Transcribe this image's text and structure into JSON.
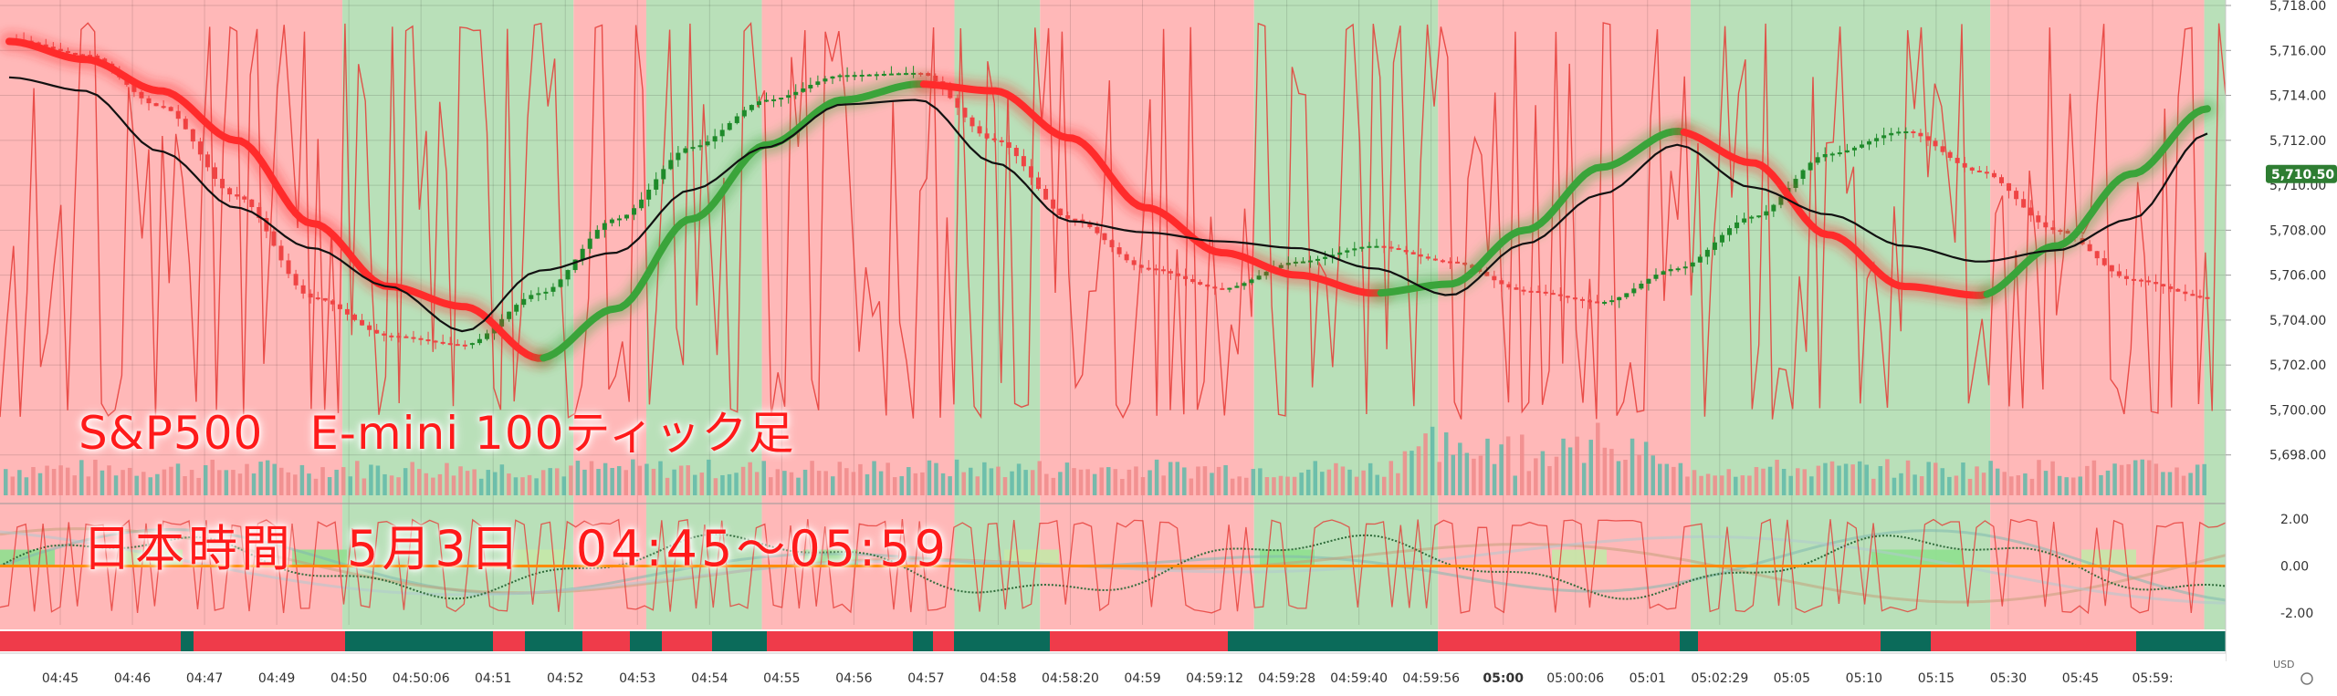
{
  "titles": {
    "line1": "S&P500　E-mini 100ティック足",
    "line2": "日本時間　5月3日　04:45～05:59"
  },
  "colors": {
    "bull_bg": "#b9e0b9",
    "bear_bg": "#ffb8b8",
    "bull": "#1e8a2a",
    "bear": "#ef4444",
    "ribbon_bull": "#3aa43a",
    "ribbon_bear": "#ff2b2b",
    "ma": "#111111",
    "osc": "#e53935",
    "zero_line": "#ff8a00",
    "strip_bull": "#0b6b5a",
    "strip_bear": "#ef3b4a",
    "vol_bull": "#5fb8a8",
    "vol_bear": "#f08a8a",
    "price_tag": "#2e7d32"
  },
  "chart_data": {
    "type": "line",
    "xlabel": "",
    "ylabel": "",
    "ylim": [
      5696,
      5718
    ],
    "y_ticks": [
      "5,718.00",
      "5,716.00",
      "5,714.00",
      "5,712.00",
      "5,710.00",
      "5,708.00",
      "5,706.00",
      "5,704.00",
      "5,702.00",
      "5,700.00",
      "5,698.00"
    ],
    "last_price": "5,710.50",
    "x_ticks": [
      "04:45",
      "04:46",
      "04:47",
      "04:49",
      "04:50",
      "04:50:06",
      "04:51",
      "04:52",
      "04:53",
      "04:54",
      "04:55",
      "04:56",
      "04:57",
      "04:58",
      "04:58:20",
      "04:59",
      "04:59:12",
      "04:59:28",
      "04:59:40",
      "04:59:56",
      "05:00",
      "05:00:06",
      "05:01",
      "05:02:29",
      "05:05",
      "05:10",
      "05:15",
      "05:30",
      "05:45",
      "05:59:"
    ],
    "x": [
      0,
      1,
      2,
      3,
      4,
      5,
      6,
      7,
      8,
      9,
      10,
      11,
      12,
      13,
      14,
      15,
      16,
      17,
      18,
      19,
      20,
      21,
      22,
      23,
      24,
      25,
      26,
      27,
      28,
      29
    ],
    "series": [
      {
        "name": "",
        "values": [
          5716.5,
          5715.8,
          5713.5,
          5709.5,
          5705.0,
          5703.3,
          5702.9,
          5705.2,
          5708.5,
          5711.7,
          5713.8,
          5714.9,
          5715.0,
          5712.0,
          5708.5,
          5706.3,
          5705.4,
          5706.6,
          5707.3,
          5706.6,
          5705.3,
          5704.8,
          5706.3,
          5708.6,
          5711.4,
          5712.4,
          5710.6,
          5708.0,
          5705.8,
          5705.0
        ]
      },
      {
        "name": "",
        "values": [
          5716.4,
          5715.6,
          5714.2,
          5712.0,
          5708.3,
          5705.5,
          5704.6,
          5702.3,
          5704.5,
          5708.5,
          5711.8,
          5713.8,
          5714.5,
          5714.2,
          5712.1,
          5709.0,
          5707.0,
          5706.0,
          5705.2,
          5705.6,
          5708.0,
          5710.8,
          5712.4,
          5711.0,
          5707.8,
          5705.5,
          5705.1,
          5707.3,
          5710.5,
          5713.4
        ]
      },
      {
        "name": "",
        "values": [
          5714.8,
          5714.2,
          5711.5,
          5709.0,
          5707.2,
          5705.5,
          5703.5,
          5706.2,
          5707.0,
          5709.8,
          5711.7,
          5713.6,
          5713.8,
          5711.0,
          5708.4,
          5707.9,
          5707.5,
          5707.2,
          5706.3,
          5705.1,
          5707.4,
          5709.6,
          5711.8,
          5709.9,
          5708.7,
          5707.3,
          5706.6,
          5707.1,
          5708.5,
          5712.3
        ]
      }
    ],
    "regions": [
      {
        "x0": 0.0,
        "x1": 8.0,
        "trend": "bear"
      },
      {
        "x0": 8.0,
        "x1": 13.4,
        "trend": "bull"
      },
      {
        "x0": 13.4,
        "x1": 15.1,
        "trend": "bear"
      },
      {
        "x0": 15.1,
        "x1": 17.8,
        "trend": "bull"
      },
      {
        "x0": 17.8,
        "x1": 22.3,
        "trend": "bear"
      },
      {
        "x0": 22.3,
        "x1": 24.3,
        "trend": "bull"
      },
      {
        "x0": 24.3,
        "x1": 29.3,
        "trend": "bear"
      },
      {
        "x0": 29.3,
        "x1": 33.6,
        "trend": "bull"
      },
      {
        "x0": 33.6,
        "x1": 39.5,
        "trend": "bear"
      },
      {
        "x0": 39.5,
        "x1": 46.5,
        "trend": "bull"
      },
      {
        "x0": 46.5,
        "x1": 51.5,
        "trend": "bear"
      },
      {
        "x0": 51.5,
        "x1": 52.0,
        "trend": "bull"
      }
    ],
    "lower_ylim": [
      -2.5,
      2.5
    ],
    "lower_ticks": [
      "2.00",
      "0.00",
      "-2.00"
    ],
    "lower_unit": "USD"
  }
}
